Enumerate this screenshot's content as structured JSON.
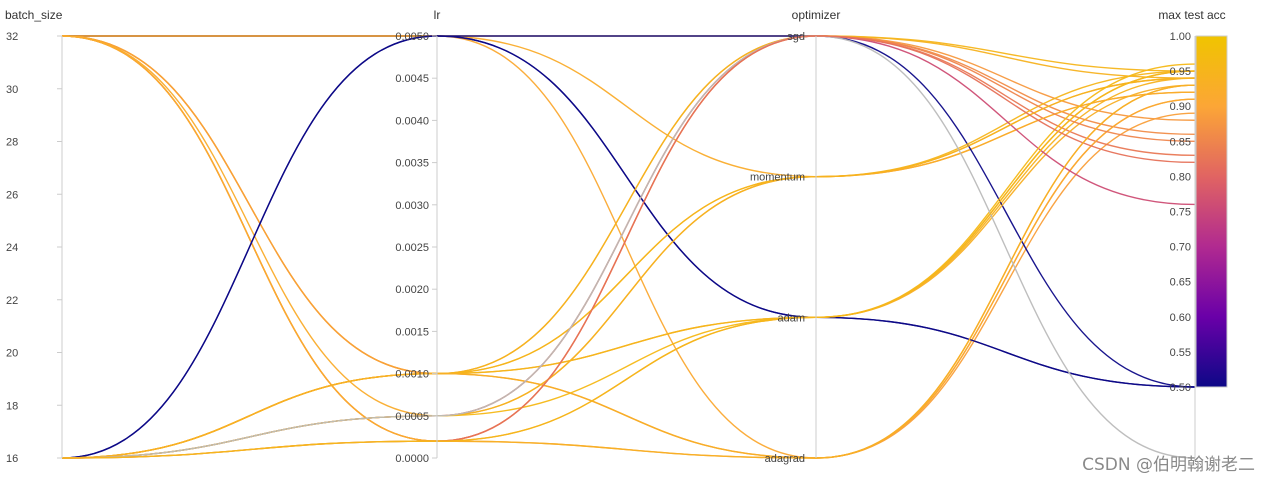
{
  "chart_data": {
    "type": "parallel_coordinates",
    "axes": [
      {
        "name": "batch_size",
        "min": 16,
        "max": 32,
        "ticks": [
          16,
          18,
          20,
          22,
          24,
          26,
          28,
          30,
          32
        ],
        "tick_labels": [
          "16",
          "18",
          "20",
          "22",
          "24",
          "26",
          "28",
          "30",
          "32"
        ]
      },
      {
        "name": "lr",
        "min": 0.0,
        "max": 0.005,
        "ticks": [
          0.0,
          0.0005,
          0.001,
          0.0015,
          0.002,
          0.0025,
          0.003,
          0.0035,
          0.004,
          0.0045,
          0.005
        ],
        "tick_labels": [
          "0.0000",
          "0.0005",
          "0.0010",
          "0.0015",
          "0.0020",
          "0.0025",
          "0.0030",
          "0.0035",
          "0.0040",
          "0.0045",
          "0.0050"
        ]
      },
      {
        "name": "optimizer",
        "categories": [
          "adagrad",
          "adam",
          "momentum",
          "sgd"
        ]
      },
      {
        "name": "max test acc",
        "min": 0.5,
        "max": 1.0,
        "ticks": [
          0.5,
          0.55,
          0.6,
          0.65,
          0.7,
          0.75,
          0.8,
          0.85,
          0.9,
          0.95,
          1.0
        ],
        "tick_labels": [
          "0.50",
          "0.55",
          "0.60",
          "0.65",
          "0.70",
          "0.75",
          "0.80",
          "0.85",
          "0.90",
          "0.95",
          "1.00"
        ]
      }
    ],
    "colorscale": [
      "#0d0887",
      "#6a00a8",
      "#b12a90",
      "#e16462",
      "#fca636",
      "#f0c400"
    ],
    "color_range": [
      0.5,
      1.0
    ],
    "runs": [
      {
        "batch_size": 32,
        "lr": 0.005,
        "optimizer": "sgd",
        "acc": 0.94
      },
      {
        "batch_size": 32,
        "lr": 0.005,
        "optimizer": "momentum",
        "acc": 0.92
      },
      {
        "batch_size": 32,
        "lr": 0.005,
        "optimizer": "adam",
        "acc": 0.5
      },
      {
        "batch_size": 32,
        "lr": 0.005,
        "optimizer": "adagrad",
        "acc": 0.91
      },
      {
        "batch_size": 32,
        "lr": 0.001,
        "optimizer": "sgd",
        "acc": 0.88
      },
      {
        "batch_size": 32,
        "lr": 0.001,
        "optimizer": "momentum",
        "acc": 0.94
      },
      {
        "batch_size": 32,
        "lr": 0.001,
        "optimizer": "adagrad",
        "acc": 0.89
      },
      {
        "batch_size": 32,
        "lr": 0.0002,
        "optimizer": "sgd",
        "acc": 0.83
      },
      {
        "batch_size": 32,
        "lr": 0.0002,
        "optimizer": "sgd",
        "acc": 0.86
      },
      {
        "batch_size": 32,
        "lr": 0.0002,
        "optimizer": "adam",
        "acc": 0.94
      },
      {
        "batch_size": 32,
        "lr": 0.0002,
        "optimizer": "adagrad",
        "acc": 0.91
      },
      {
        "batch_size": 32,
        "lr": 0.0005,
        "optimizer": "momentum",
        "acc": 0.92
      },
      {
        "batch_size": 16,
        "lr": 0.005,
        "optimizer": "sgd",
        "acc": 0.5
      },
      {
        "batch_size": 16,
        "lr": 0.005,
        "optimizer": "adam",
        "acc": 0.5
      },
      {
        "batch_size": 16,
        "lr": 0.001,
        "optimizer": "sgd",
        "acc": 0.95
      },
      {
        "batch_size": 16,
        "lr": 0.001,
        "optimizer": "momentum",
        "acc": 0.95
      },
      {
        "batch_size": 16,
        "lr": 0.001,
        "optimizer": "adam",
        "acc": 0.93
      },
      {
        "batch_size": 16,
        "lr": 0.001,
        "optimizer": "adam",
        "acc": 0.95
      },
      {
        "batch_size": 16,
        "lr": 0.001,
        "optimizer": "adagrad",
        "acc": 0.93
      },
      {
        "batch_size": 16,
        "lr": 0.0005,
        "optimizer": "sgd",
        "acc": 0.76
      },
      {
        "batch_size": 16,
        "lr": 0.0005,
        "optimizer": "sgd",
        "acc": 0.85
      },
      {
        "batch_size": 16,
        "lr": 0.0005,
        "optimizer": "momentum",
        "acc": 0.94
      },
      {
        "batch_size": 16,
        "lr": 0.0005,
        "optimizer": "adam",
        "acc": 0.96
      },
      {
        "batch_size": 16,
        "lr": 0.0005,
        "optimizer": "sgd",
        "acc": null
      },
      {
        "batch_size": 16,
        "lr": 0.0002,
        "optimizer": "sgd",
        "acc": 0.82
      },
      {
        "batch_size": 16,
        "lr": 0.0002,
        "optimizer": "adagrad",
        "acc": 0.93
      },
      {
        "batch_size": 16,
        "lr": 0.0002,
        "optimizer": "adam",
        "acc": 0.95
      }
    ],
    "null_color": "#bbbbbb"
  },
  "watermark": "CSDN @伯明翰谢老二"
}
